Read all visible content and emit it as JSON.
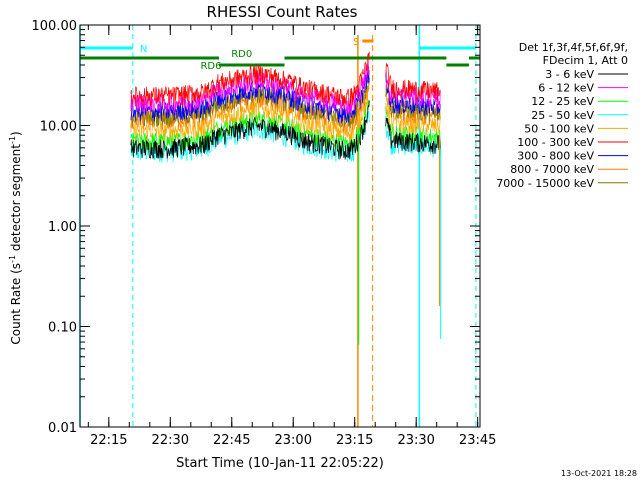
{
  "chart_data": {
    "type": "line",
    "title": "RHESSI Count Rates",
    "xlabel": "Start Time (10-Jan-11 22:05:22)",
    "ylabel_main": "Count Rate (s",
    "ylabel_sup": "-1",
    "ylabel_rest": " detector segment",
    "ylabel_sup2": "-1",
    "ylabel_end": ")",
    "yscale": "log",
    "ylim": [
      0.01,
      100
    ],
    "xlim_minutes": [
      7.6,
      105.2
    ],
    "y_ticks": [
      {
        "value": 0.01,
        "label": "0.01"
      },
      {
        "value": 0.1,
        "label": "0.10"
      },
      {
        "value": 1,
        "label": "1.00"
      },
      {
        "value": 10,
        "label": "10.00"
      },
      {
        "value": 100,
        "label": "100.00"
      }
    ],
    "x_ticks": [
      {
        "value": 14.63,
        "label": "22:15"
      },
      {
        "value": 29.63,
        "label": "22:30"
      },
      {
        "value": 44.63,
        "label": "22:45"
      },
      {
        "value": 59.63,
        "label": "23:00"
      },
      {
        "value": 74.63,
        "label": "23:15"
      },
      {
        "value": 89.63,
        "label": "23:30"
      },
      {
        "value": 104.63,
        "label": "23:45"
      }
    ],
    "legend_header": [
      "Det 1f,3f,4f,5f,6f,9f,",
      "FDecim 1, Att 0"
    ],
    "series": [
      {
        "name": "3 - 6 keV",
        "color": "#000000",
        "base": 6.0
      },
      {
        "name": "6 - 12 keV",
        "color": "#ff00ff",
        "base": 17.0
      },
      {
        "name": "12 - 25 keV",
        "color": "#00ff00",
        "base": 7.0
      },
      {
        "name": "25 - 50 keV",
        "color": "#00ffff",
        "base": 5.5
      },
      {
        "name": "50 - 100 keV",
        "color": "#ffaa00",
        "base": 9.0
      },
      {
        "name": "100 - 300 keV",
        "color": "#ff0000",
        "base": 20.0
      },
      {
        "name": "300 - 800 keV",
        "color": "#0000ff",
        "base": 14.0
      },
      {
        "name": "800 - 7000 keV",
        "color": "#ff7f00",
        "base": 11.5
      },
      {
        "name": "7000 - 15000 keV",
        "color": "#7f7f00",
        "base": 12.5
      }
    ],
    "data_segments_minutes": [
      [
        20.0,
        78.3
      ],
      [
        82.2,
        95.6
      ]
    ],
    "annotations": {
      "night_label": "N",
      "saa_label": "S",
      "rd0_label": "RD0",
      "rd6_label": "RD6"
    },
    "footer_date": "13-Oct-2021 18:28",
    "colors": {
      "night": "#00ffff",
      "saa": "#ff8800",
      "attenuator_state": "#007f00"
    }
  }
}
